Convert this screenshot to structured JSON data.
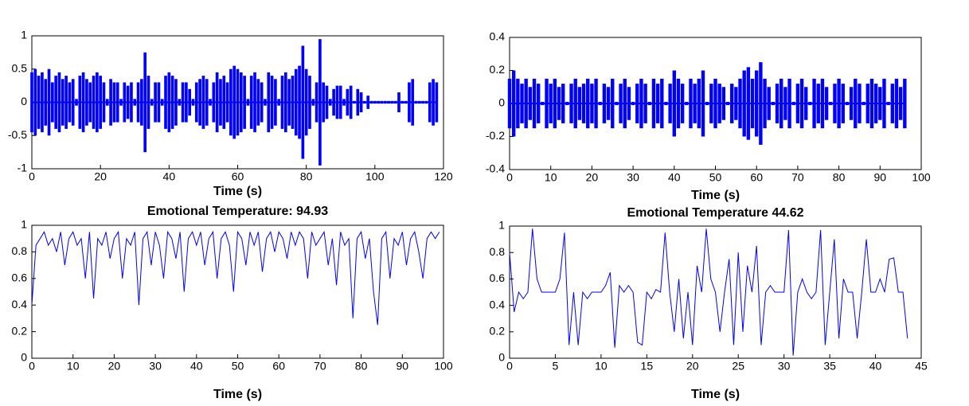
{
  "chart_data": [
    {
      "type": "waveform",
      "xlabel": "Time (s)",
      "color": "#0000ff",
      "xlim": [
        0,
        120
      ],
      "xticks": [
        0,
        20,
        40,
        60,
        80,
        100,
        120
      ],
      "ylim": [
        -1,
        1
      ],
      "yticks": [
        -1,
        -0.5,
        0,
        0.5,
        1
      ],
      "x": [
        0,
        1,
        2,
        3,
        4,
        5,
        6,
        7,
        8,
        9,
        10,
        11,
        12,
        13,
        14,
        15,
        16,
        17,
        18,
        19,
        20,
        21,
        22,
        23,
        24,
        25,
        26,
        27,
        28,
        29,
        30,
        31,
        32,
        33,
        34,
        35,
        36,
        37,
        38,
        39,
        40,
        41,
        42,
        43,
        44,
        45,
        46,
        47,
        48,
        49,
        50,
        51,
        52,
        53,
        54,
        55,
        56,
        57,
        58,
        59,
        60,
        61,
        62,
        63,
        64,
        65,
        66,
        67,
        68,
        69,
        70,
        71,
        72,
        73,
        74,
        75,
        76,
        77,
        78,
        79,
        80,
        81,
        82,
        83,
        84,
        85,
        86,
        87,
        88,
        89,
        90,
        91,
        92,
        93,
        94,
        95,
        96,
        97,
        98,
        99,
        100,
        101,
        102,
        103,
        104,
        105,
        106,
        107,
        108,
        109,
        110,
        111,
        112,
        113,
        114,
        115,
        116,
        117,
        118
      ],
      "values": [
        0.45,
        0.5,
        0.4,
        0.45,
        0.35,
        0.5,
        0.3,
        0.4,
        0.45,
        0.35,
        0.4,
        0.3,
        0.35,
        0.05,
        0.4,
        0.45,
        0.35,
        0.3,
        0.4,
        0.45,
        0.4,
        0.3,
        0.05,
        0.35,
        0.3,
        0.3,
        0.05,
        0.3,
        0.25,
        0.3,
        0.05,
        0.3,
        0.35,
        0.75,
        0.4,
        0.05,
        0.3,
        0.3,
        0.05,
        0.4,
        0.45,
        0.4,
        0.35,
        0.05,
        0.3,
        0.3,
        0.2,
        0.05,
        0.3,
        0.35,
        0.4,
        0.35,
        0.05,
        0.3,
        0.45,
        0.35,
        0.4,
        0.3,
        0.5,
        0.55,
        0.5,
        0.45,
        0.4,
        0.05,
        0.4,
        0.45,
        0.35,
        0.3,
        0.05,
        0.45,
        0.4,
        0.35,
        0.05,
        0.4,
        0.45,
        0.35,
        0.4,
        0.5,
        0.55,
        0.85,
        0.5,
        0.4,
        0.05,
        0.3,
        0.95,
        0.3,
        0.25,
        0.05,
        0.2,
        0.25,
        0.25,
        0.05,
        0.2,
        0.25,
        0.02,
        0.2,
        0.15,
        0.02,
        0.1,
        0.02,
        0.02,
        0.02,
        0.02,
        0.02,
        0.02,
        0.02,
        0.02,
        0.15,
        0.02,
        0.02,
        0.3,
        0.35,
        0.02,
        0.02,
        0.02,
        0.02,
        0.3,
        0.35,
        0.3
      ]
    },
    {
      "type": "waveform",
      "xlabel": "Time (s)",
      "color": "#0000ff",
      "xlim": [
        0,
        100
      ],
      "xticks": [
        0,
        10,
        20,
        30,
        40,
        50,
        60,
        70,
        80,
        90,
        100
      ],
      "ylim": [
        -0.4,
        0.4
      ],
      "yticks": [
        -0.4,
        -0.2,
        0,
        0.2,
        0.4
      ],
      "x": [
        0,
        1,
        2,
        3,
        4,
        5,
        6,
        7,
        8,
        9,
        10,
        11,
        12,
        13,
        14,
        15,
        16,
        17,
        18,
        19,
        20,
        21,
        22,
        23,
        24,
        25,
        26,
        27,
        28,
        29,
        30,
        31,
        32,
        33,
        34,
        35,
        36,
        37,
        38,
        39,
        40,
        41,
        42,
        43,
        44,
        45,
        46,
        47,
        48,
        49,
        50,
        51,
        52,
        53,
        54,
        55,
        56,
        57,
        58,
        59,
        60,
        61,
        62,
        63,
        64,
        65,
        66,
        67,
        68,
        69,
        70,
        71,
        72,
        73,
        74,
        75,
        76,
        77,
        78,
        79,
        80,
        81,
        82,
        83,
        84,
        85,
        86,
        87,
        88,
        89,
        90,
        91,
        92,
        93,
        94,
        95,
        96
      ],
      "values": [
        0.15,
        0.2,
        0.15,
        0.12,
        0.15,
        0.1,
        0.15,
        0.12,
        0.01,
        0.15,
        0.12,
        0.15,
        0.1,
        0.12,
        0.01,
        0.12,
        0.15,
        0.1,
        0.12,
        0.15,
        0.12,
        0.15,
        0.01,
        0.12,
        0.1,
        0.15,
        0.01,
        0.12,
        0.15,
        0.1,
        0.01,
        0.12,
        0.15,
        0.12,
        0.01,
        0.15,
        0.12,
        0.15,
        0.01,
        0.12,
        0.2,
        0.15,
        0.12,
        0.01,
        0.15,
        0.12,
        0.15,
        0.2,
        0.01,
        0.12,
        0.15,
        0.12,
        0.1,
        0.01,
        0.12,
        0.1,
        0.15,
        0.2,
        0.22,
        0.15,
        0.2,
        0.25,
        0.15,
        0.1,
        0.01,
        0.12,
        0.15,
        0.1,
        0.15,
        0.01,
        0.12,
        0.15,
        0.1,
        0.01,
        0.15,
        0.12,
        0.15,
        0.1,
        0.01,
        0.12,
        0.15,
        0.12,
        0.01,
        0.1,
        0.15,
        0.12,
        0.01,
        0.12,
        0.15,
        0.12,
        0.1,
        0.15,
        0.01,
        0.12,
        0.15,
        0.1,
        0.15
      ]
    },
    {
      "type": "line",
      "title": "Emotional Temperature: 94.93",
      "xlabel": "Time (s)",
      "color": "#0000ff",
      "xlim": [
        0,
        100
      ],
      "xticks": [
        0,
        10,
        20,
        30,
        40,
        50,
        60,
        70,
        80,
        90,
        100
      ],
      "ylim": [
        0,
        1
      ],
      "yticks": [
        0,
        0.2,
        0.4,
        0.6,
        0.8,
        1
      ],
      "x": [
        0,
        1,
        2,
        3,
        4,
        5,
        6,
        7,
        8,
        9,
        10,
        11,
        12,
        13,
        14,
        15,
        16,
        17,
        18,
        19,
        20,
        21,
        22,
        23,
        24,
        25,
        26,
        27,
        28,
        29,
        30,
        31,
        32,
        33,
        34,
        35,
        36,
        37,
        38,
        39,
        40,
        41,
        42,
        43,
        44,
        45,
        46,
        47,
        48,
        49,
        50,
        51,
        52,
        53,
        54,
        55,
        56,
        57,
        58,
        59,
        60,
        61,
        62,
        63,
        64,
        65,
        66,
        67,
        68,
        69,
        70,
        71,
        72,
        73,
        74,
        75,
        76,
        77,
        78,
        79,
        80,
        81,
        82,
        83,
        84,
        85,
        86,
        87,
        88,
        89,
        90,
        91,
        92,
        93,
        94,
        95,
        96,
        97,
        98,
        99
      ],
      "values": [
        0.4,
        0.85,
        0.9,
        0.95,
        0.85,
        0.9,
        0.8,
        0.95,
        0.7,
        0.9,
        0.95,
        0.85,
        0.9,
        0.6,
        0.95,
        0.45,
        0.9,
        0.85,
        0.95,
        0.75,
        0.9,
        0.95,
        0.6,
        0.9,
        0.85,
        0.95,
        0.4,
        0.9,
        0.95,
        0.7,
        0.95,
        0.85,
        0.6,
        0.95,
        0.9,
        0.75,
        0.95,
        0.5,
        0.9,
        0.95,
        0.85,
        0.95,
        0.7,
        0.9,
        0.95,
        0.6,
        0.9,
        0.95,
        0.85,
        0.5,
        0.95,
        0.9,
        0.7,
        0.95,
        0.85,
        0.95,
        0.65,
        0.9,
        0.95,
        0.8,
        0.95,
        0.9,
        0.75,
        0.95,
        0.85,
        0.95,
        0.9,
        0.6,
        0.95,
        0.85,
        0.9,
        0.95,
        0.7,
        0.9,
        0.55,
        0.95,
        0.85,
        0.9,
        0.3,
        0.9,
        0.95,
        0.75,
        0.9,
        0.5,
        0.25,
        0.9,
        0.95,
        0.6,
        0.9,
        0.85,
        0.95,
        0.7,
        0.9,
        0.95,
        0.8,
        0.6,
        0.9,
        0.95,
        0.9,
        0.95
      ]
    },
    {
      "type": "line",
      "title": "Emotional Temperature 44.62",
      "xlabel": "Time (s)",
      "color": "#0000ff",
      "xlim": [
        0,
        45
      ],
      "xticks": [
        0,
        5,
        10,
        15,
        20,
        25,
        30,
        35,
        40,
        45
      ],
      "ylim": [
        0,
        1
      ],
      "yticks": [
        0,
        0.2,
        0.4,
        0.6,
        0.8,
        1
      ],
      "x": [
        0,
        0.5,
        1,
        1.5,
        2,
        2.5,
        3,
        3.5,
        4,
        4.5,
        5,
        5.5,
        6,
        6.5,
        7,
        7.5,
        8,
        8.5,
        9,
        9.5,
        10,
        10.5,
        11,
        11.5,
        12,
        12.5,
        13,
        13.5,
        14,
        14.5,
        15,
        15.5,
        16,
        16.5,
        17,
        17.5,
        18,
        18.5,
        19,
        19.5,
        20,
        20.5,
        21,
        21.5,
        22,
        22.5,
        23,
        23.5,
        24,
        24.5,
        25,
        25.5,
        26,
        26.5,
        27,
        27.5,
        28,
        28.5,
        29,
        29.5,
        30,
        30.5,
        31,
        31.5,
        32,
        32.5,
        33,
        33.5,
        34,
        34.5,
        35,
        35.5,
        36,
        36.5,
        37,
        37.5,
        38,
        38.5,
        39,
        39.5,
        40,
        40.5,
        41,
        41.5,
        42,
        42.5,
        43,
        43.5
      ],
      "values": [
        0.8,
        0.35,
        0.5,
        0.45,
        0.5,
        0.98,
        0.6,
        0.5,
        0.5,
        0.5,
        0.5,
        0.6,
        0.95,
        0.1,
        0.5,
        0.1,
        0.5,
        0.45,
        0.5,
        0.5,
        0.5,
        0.55,
        0.65,
        0.08,
        0.55,
        0.5,
        0.55,
        0.5,
        0.12,
        0.1,
        0.5,
        0.45,
        0.52,
        0.5,
        0.95,
        0.5,
        0.2,
        0.6,
        0.15,
        0.5,
        0.1,
        0.7,
        0.5,
        0.98,
        0.6,
        0.5,
        0.2,
        0.5,
        0.75,
        0.1,
        0.8,
        0.2,
        0.7,
        0.5,
        0.85,
        0.1,
        0.5,
        0.55,
        0.5,
        0.5,
        0.5,
        0.97,
        0.02,
        0.5,
        0.6,
        0.5,
        0.45,
        0.5,
        0.97,
        0.1,
        0.5,
        0.9,
        0.15,
        0.6,
        0.5,
        0.5,
        0.15,
        0.5,
        0.9,
        0.5,
        0.5,
        0.6,
        0.5,
        0.75,
        0.76,
        0.5,
        0.5,
        0.15
      ]
    }
  ]
}
